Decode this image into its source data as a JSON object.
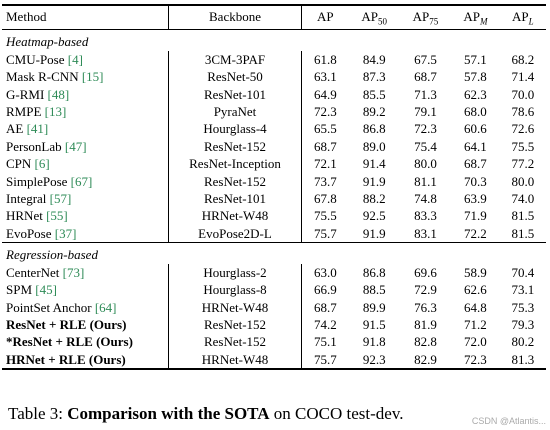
{
  "columns": {
    "method": "Method",
    "backbone": "Backbone",
    "ap": "AP",
    "ap50_base": "AP",
    "ap50_sub": "50",
    "ap75_base": "AP",
    "ap75_sub": "75",
    "apm_base": "AP",
    "apm_sub": "M",
    "apl_base": "AP",
    "apl_sub": "L"
  },
  "sections": [
    {
      "title": "Heatmap-based",
      "rows": [
        {
          "name": "CMU-Pose",
          "cite": "[4]",
          "backbone": "3CM-3PAF",
          "ap": "61.8",
          "ap50": "84.9",
          "ap75": "67.5",
          "apm": "57.1",
          "apl": "68.2",
          "bold": []
        },
        {
          "name": "Mask R-CNN",
          "cite": "[15]",
          "backbone": "ResNet-50",
          "ap": "63.1",
          "ap50": "87.3",
          "ap75": "68.7",
          "apm": "57.8",
          "apl": "71.4",
          "bold": []
        },
        {
          "name": "G-RMI",
          "cite": "[48]",
          "backbone": "ResNet-101",
          "ap": "64.9",
          "ap50": "85.5",
          "ap75": "71.3",
          "apm": "62.3",
          "apl": "70.0",
          "bold": []
        },
        {
          "name": "RMPE",
          "cite": "[13]",
          "backbone": "PyraNet",
          "ap": "72.3",
          "ap50": "89.2",
          "ap75": "79.1",
          "apm": "68.0",
          "apl": "78.6",
          "bold": []
        },
        {
          "name": "AE",
          "cite": "[41]",
          "backbone": "Hourglass-4",
          "ap": "65.5",
          "ap50": "86.8",
          "ap75": "72.3",
          "apm": "60.6",
          "apl": "72.6",
          "bold": []
        },
        {
          "name": "PersonLab",
          "cite": "[47]",
          "backbone": "ResNet-152",
          "ap": "68.7",
          "ap50": "89.0",
          "ap75": "75.4",
          "apm": "64.1",
          "apl": "75.5",
          "bold": []
        },
        {
          "name": "CPN",
          "cite": "[6]",
          "backbone": "ResNet-Inception",
          "ap": "72.1",
          "ap50": "91.4",
          "ap75": "80.0",
          "apm": "68.7",
          "apl": "77.2",
          "bold": []
        },
        {
          "name": "SimplePose",
          "cite": "[67]",
          "backbone": "ResNet-152",
          "ap": "73.7",
          "ap50": "91.9",
          "ap75": "81.1",
          "apm": "70.3",
          "apl": "80.0",
          "bold": []
        },
        {
          "name": "Integral",
          "cite": "[57]",
          "backbone": "ResNet-101",
          "ap": "67.8",
          "ap50": "88.2",
          "ap75": "74.8",
          "apm": "63.9",
          "apl": "74.0",
          "bold": []
        },
        {
          "name": "HRNet",
          "cite": "[55]",
          "backbone": "HRNet-W48",
          "ap": "75.5",
          "ap50": "92.5",
          "ap75": "83.3",
          "apm": "71.9",
          "apl": "81.5",
          "bold": [
            "ap50",
            "ap75",
            "apl"
          ]
        },
        {
          "name": "EvoPose",
          "cite": "[37]",
          "backbone": "EvoPose2D-L",
          "ap": "75.7",
          "ap50": "91.9",
          "ap75": "83.1",
          "apm": "72.2",
          "apl": "81.5",
          "bold": [
            "ap"
          ]
        }
      ]
    },
    {
      "title": "Regression-based",
      "rows": [
        {
          "name": "CenterNet",
          "cite": "[73]",
          "backbone": "Hourglass-2",
          "ap": "63.0",
          "ap50": "86.8",
          "ap75": "69.6",
          "apm": "58.9",
          "apl": "70.4",
          "bold": []
        },
        {
          "name": "SPM",
          "cite": "[45]",
          "backbone": "Hourglass-8",
          "ap": "66.9",
          "ap50": "88.5",
          "ap75": "72.9",
          "apm": "62.6",
          "apl": "73.1",
          "bold": []
        },
        {
          "name": "PointSet Anchor",
          "cite": "[64]",
          "backbone": "HRNet-W48",
          "ap": "68.7",
          "ap50": "89.9",
          "ap75": "76.3",
          "apm": "64.8",
          "apl": "75.3",
          "bold": []
        },
        {
          "name": "ResNet + RLE (Ours)",
          "cite": "",
          "backbone": "ResNet-152",
          "ap": "74.2",
          "ap50": "91.5",
          "ap75": "81.9",
          "apm": "71.2",
          "apl": "79.3",
          "bold": [
            "name"
          ]
        },
        {
          "name": "*ResNet + RLE (Ours)",
          "cite": "",
          "backbone": "ResNet-152",
          "ap": "75.1",
          "ap50": "91.8",
          "ap75": "82.8",
          "apm": "72.0",
          "apl": "80.2",
          "bold": [
            "name"
          ]
        },
        {
          "name": "HRNet + RLE (Ours)",
          "cite": "",
          "backbone": "HRNet-W48",
          "ap": "75.7",
          "ap50": "92.3",
          "ap75": "82.9",
          "apm": "72.3",
          "apl": "81.3",
          "bold": [
            "name",
            "ap",
            "apm"
          ]
        }
      ]
    }
  ],
  "caption": {
    "label": "Table 3:",
    "bold": "Comparison with the SOTA",
    "rest": "on COCO test-dev."
  },
  "watermark": "CSDN @Atlantis..."
}
